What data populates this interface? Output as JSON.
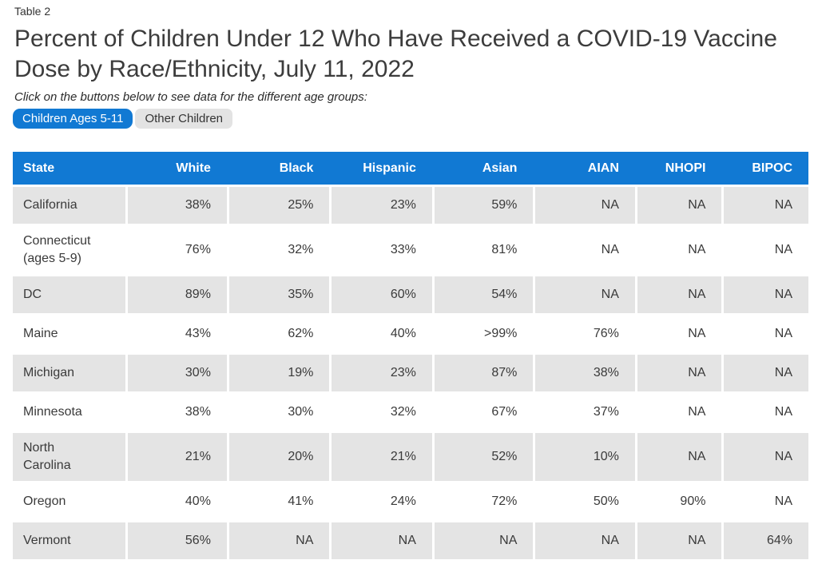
{
  "page": {
    "table_label": "Table 2",
    "title": "Percent of Children Under 12 Who Have Received a COVID-19 Vaccine\nDose by Race/Ethnicity, July 11, 2022",
    "subtitle": "Click on the buttons below to see data for the different age groups:",
    "buttons": [
      {
        "label": "Children Ages 5-11",
        "active": true
      },
      {
        "label": "Other Children",
        "active": false
      }
    ]
  },
  "colors": {
    "header_blue": "#1179d3",
    "active_button_blue": "#1179d3",
    "inactive_button_gray": "#e3e3e3",
    "row_gray": "#e4e4e4",
    "header_text": "#ffffff",
    "body_text": "#3a3a3a"
  },
  "chart_data": {
    "type": "table",
    "title": "Percent of Children Under 12 Who Have Received a COVID-19 Vaccine Dose by Race/Ethnicity, July 11, 2022",
    "columns": [
      "State",
      "White",
      "Black",
      "Hispanic",
      "Asian",
      "AIAN",
      "NHOPI",
      "BIPOC"
    ],
    "rows": [
      {
        "state": "California",
        "values": [
          "38%",
          "25%",
          "23%",
          "59%",
          "NA",
          "NA",
          "NA"
        ]
      },
      {
        "state": "Connecticut\n(ages 5-9)",
        "values": [
          "76%",
          "32%",
          "33%",
          "81%",
          "NA",
          "NA",
          "NA"
        ]
      },
      {
        "state": "DC",
        "values": [
          "89%",
          "35%",
          "60%",
          "54%",
          "NA",
          "NA",
          "NA"
        ]
      },
      {
        "state": "Maine",
        "values": [
          "43%",
          "62%",
          "40%",
          ">99%",
          "76%",
          "NA",
          "NA"
        ]
      },
      {
        "state": "Michigan",
        "values": [
          "30%",
          "19%",
          "23%",
          "87%",
          "38%",
          "NA",
          "NA"
        ]
      },
      {
        "state": "Minnesota",
        "values": [
          "38%",
          "30%",
          "32%",
          "67%",
          "37%",
          "NA",
          "NA"
        ]
      },
      {
        "state": "North\nCarolina",
        "values": [
          "21%",
          "20%",
          "21%",
          "52%",
          "10%",
          "NA",
          "NA"
        ]
      },
      {
        "state": "Oregon",
        "values": [
          "40%",
          "41%",
          "24%",
          "72%",
          "50%",
          "90%",
          "NA"
        ]
      },
      {
        "state": "Vermont",
        "values": [
          "56%",
          "NA",
          "NA",
          "NA",
          "NA",
          "NA",
          "64%"
        ]
      }
    ]
  }
}
